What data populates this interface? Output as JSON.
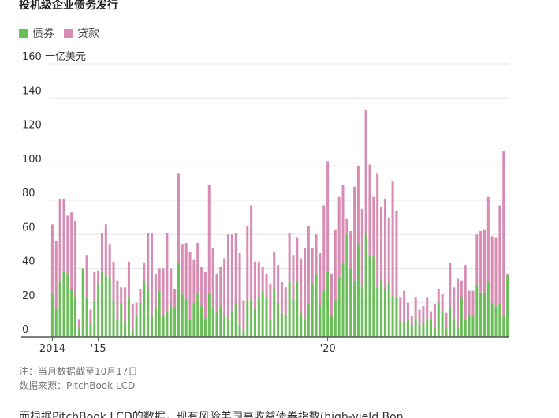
{
  "header": {
    "title": "投机级企业债务发行"
  },
  "legend": [
    {
      "label": "债券",
      "color": "#6abf59"
    },
    {
      "label": "贷款",
      "color": "#d98cb3"
    }
  ],
  "footer": {
    "note": "注：当月数据截至10月17日",
    "source": "数据来源：PitchBook LCD",
    "cut_text": "而根据PitchBook LCD的数据，现有风险美国高收益债券指数(high-yield Bon"
  },
  "chart_data": {
    "type": "bar",
    "stacked": true,
    "ylim": [
      0,
      160
    ],
    "y_unit_label": "十亿美元",
    "yticks": [
      0,
      20,
      40,
      60,
      80,
      100,
      120,
      140,
      160
    ],
    "xtick_labels": [
      {
        "label": "2014",
        "index": 0
      },
      {
        "label": "'15",
        "index": 12
      },
      {
        "label": "'20",
        "index": 72
      }
    ],
    "grid": true,
    "series": [
      {
        "name": "债券",
        "color": "#6abf59",
        "values": [
          25,
          16,
          33,
          38,
          37,
          28,
          24,
          5,
          40,
          23,
          8,
          21,
          31,
          38,
          36,
          35,
          21,
          10,
          19,
          9,
          23,
          4,
          12,
          20,
          32,
          28,
          13,
          17,
          27,
          12,
          15,
          18,
          17,
          43,
          25,
          22,
          10,
          20,
          25,
          18,
          11,
          25,
          17,
          15,
          18,
          13,
          11,
          15,
          19,
          7,
          3,
          21,
          22,
          16,
          23,
          27,
          23,
          10,
          28,
          20,
          14,
          13,
          32,
          22,
          32,
          14,
          11,
          19,
          31,
          37,
          18,
          27,
          38,
          12,
          21,
          35,
          43,
          60,
          40,
          33,
          54,
          30,
          60,
          48,
          47,
          29,
          33,
          28,
          31,
          24,
          23,
          9,
          9,
          10,
          7,
          11,
          7,
          8,
          11,
          10,
          6,
          20,
          15,
          5,
          17,
          11,
          6,
          23,
          10,
          13,
          12,
          30,
          26,
          26,
          32,
          19,
          18,
          19,
          12,
          36
        ]
      },
      {
        "name": "贷款",
        "color": "#d98cb3",
        "values": [
          41,
          40,
          48,
          43,
          34,
          45,
          44,
          5,
          0,
          25,
          8,
          17,
          8,
          23,
          30,
          19,
          23,
          23,
          10,
          20,
          21,
          15,
          8,
          8,
          11,
          33,
          48,
          20,
          13,
          28,
          46,
          22,
          11,
          53,
          29,
          33,
          40,
          25,
          30,
          23,
          27,
          64,
          35,
          22,
          23,
          33,
          49,
          45,
          42,
          42,
          18,
          44,
          55,
          28,
          21,
          14,
          14,
          21,
          22,
          22,
          18,
          16,
          29,
          26,
          26,
          32,
          41,
          46,
          21,
          23,
          31,
          50,
          65,
          25,
          42,
          47,
          46,
          9,
          22,
          55,
          46,
          45,
          73,
          53,
          35,
          67,
          43,
          53,
          39,
          67,
          51,
          14,
          18,
          10,
          5,
          12,
          9,
          10,
          12,
          5,
          13,
          8,
          10,
          9,
          26,
          18,
          28,
          10,
          32,
          14,
          15,
          30,
          36,
          37,
          50,
          40,
          40,
          58,
          97,
          1
        ]
      }
    ]
  }
}
